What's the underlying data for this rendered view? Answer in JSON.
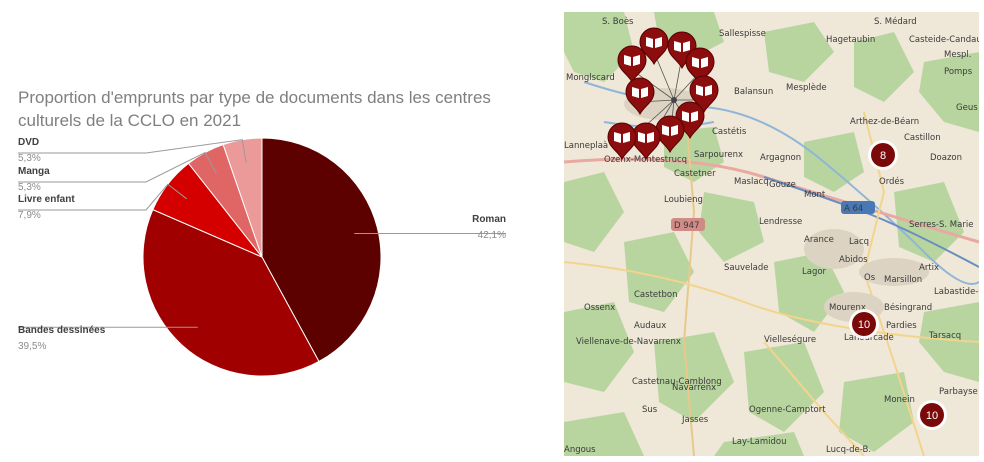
{
  "chart_data": {
    "type": "pie",
    "title": "Proportion d'emprunts par type de documents dans les centres culturels de la CCLO en 2021",
    "slices": [
      {
        "label": "Roman",
        "value": 42.1,
        "value_label": "42,1%",
        "color": "#5c0000"
      },
      {
        "label": "Bandes dessinées",
        "value": 39.5,
        "value_label": "39,5%",
        "color": "#a10000"
      },
      {
        "label": "Livre enfant",
        "value": 7.9,
        "value_label": "7,9%",
        "color": "#d40000"
      },
      {
        "label": "Manga",
        "value": 5.3,
        "value_label": "5,3%",
        "color": "#e06666"
      },
      {
        "label": "DVD",
        "value": 5.3,
        "value_label": "5,3%",
        "color": "#eb9999"
      }
    ]
  },
  "map": {
    "places": [
      "S. Boès",
      "Sallespisse",
      "S. Médard",
      "Hagetaubin",
      "Casteide-Candau",
      "Mespl.",
      "Pomps",
      "Monglscard",
      "Balansun",
      "Mesplède",
      "Geus",
      "Arthez-de-Béarn",
      "Castillon",
      "Castétis",
      "Lanneplaà",
      "Ozenx-Montestrucq",
      "Sarpourenx",
      "Argagnon",
      "Doazon",
      "Maslacq",
      "Castetner",
      "Gouze",
      "Ordés",
      "Mont",
      "A 64",
      "Loubieng",
      "Lendresse",
      "Serres-S. Marie",
      "D 947",
      "Arance",
      "Lacq",
      "Abidos",
      "Sauvelade",
      "Lagor",
      "Os",
      "Artix",
      "Castetbon",
      "Marsillon",
      "Labastide-Cézérac",
      "Ossenx",
      "Mourenx",
      "Bésingrand",
      "Audaux",
      "Pardies",
      "Lahourcade",
      "Viellenave-de-Navarrenx",
      "Vielleségure",
      "Tarsacq",
      "Castetnau-Camblong",
      "Navarrenx",
      "Parbayse",
      "Monein",
      "Sus",
      "Ogenne-Camptort",
      "Jasses",
      "Lay-Lamidou",
      "Angous",
      "Lucq-de-B."
    ],
    "clusters": [
      "8",
      "10",
      "10"
    ],
    "marker_icon": "book-icon"
  }
}
